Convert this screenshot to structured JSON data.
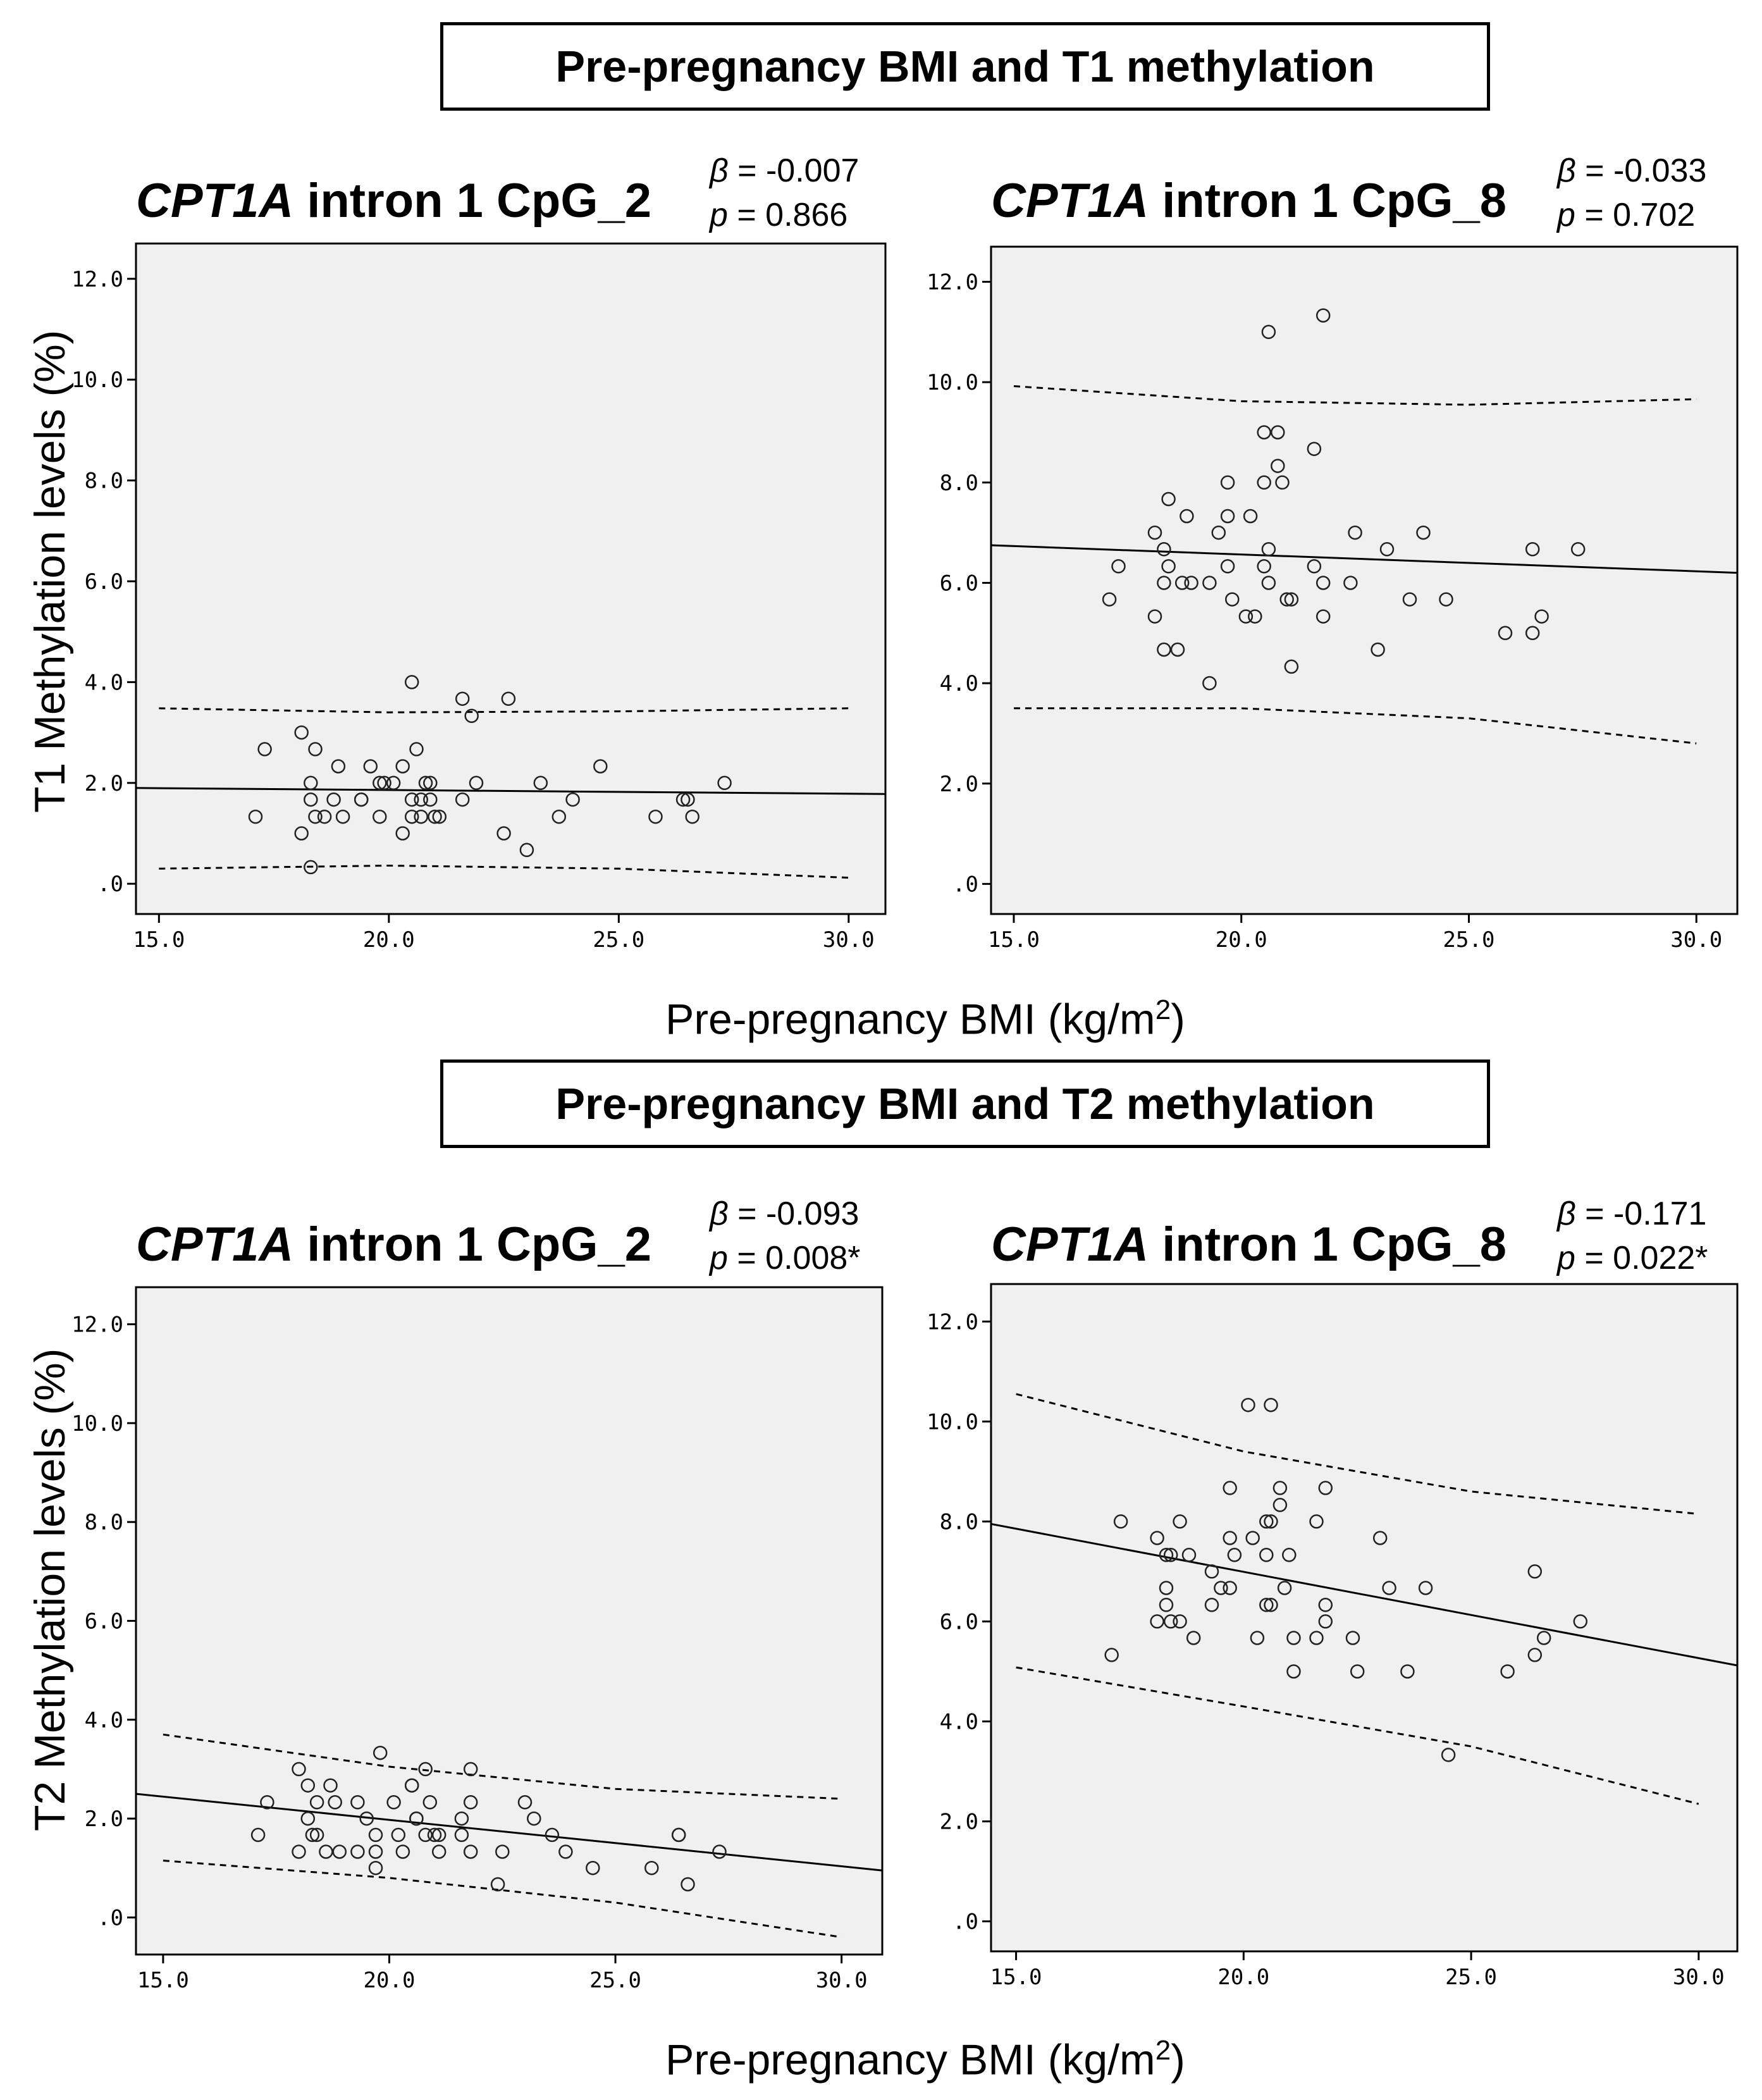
{
  "sections": [
    {
      "title": "Pre-pregnancy BMI and T1 methylation"
    },
    {
      "title": "Pre-pregnancy BMI and T2 methylation"
    }
  ],
  "y_labels": [
    "T1 Methylation levels (%)",
    "T2 Methylation levels (%)"
  ],
  "x_label": {
    "text": "Pre-pregnancy BMI (kg/m",
    "sup": "2",
    "close": ")"
  },
  "panels": [
    {
      "gene": "CPT1A",
      "title_rest": " intron 1 CpG_2",
      "beta_label": "β",
      "beta_value": " = -0.007",
      "p_label": "p",
      "p_value": " = 0.866"
    },
    {
      "gene": "CPT1A",
      "title_rest": " intron 1 CpG_8",
      "beta_label": "β",
      "beta_value": " = -0.033",
      "p_label": "p",
      "p_value": " = 0.702"
    },
    {
      "gene": "CPT1A",
      "title_rest": " intron 1 CpG_2",
      "beta_label": "β",
      "beta_value": " = -0.093",
      "p_label": "p",
      "p_value": " = 0.008*"
    },
    {
      "gene": "CPT1A",
      "title_rest": " intron 1 CpG_8",
      "beta_label": "β",
      "beta_value": " = -0.171",
      "p_label": "p",
      "p_value": " = 0.022*"
    }
  ],
  "chart_data": [
    {
      "type": "scatter",
      "title": "CPT1A intron 1 CpG_2",
      "xlabel": "Pre-pregnancy BMI (kg/m2)",
      "ylabel": "T1 Methylation levels (%)",
      "xlim": [
        14.5,
        30.8
      ],
      "ylim": [
        -0.6,
        12.7
      ],
      "x_ticks": [
        "15.0",
        "20.0",
        "25.0",
        "30.0"
      ],
      "y_ticks": [
        ".0",
        "2.0",
        "4.0",
        "6.0",
        "8.0",
        "10.0",
        "12.0"
      ],
      "points": [
        [
          17.1,
          1.33
        ],
        [
          17.3,
          2.67
        ],
        [
          18.1,
          3.0
        ],
        [
          18.1,
          1.0
        ],
        [
          18.3,
          2.0
        ],
        [
          18.3,
          0.33
        ],
        [
          18.3,
          1.67
        ],
        [
          18.4,
          1.33
        ],
        [
          18.4,
          2.67
        ],
        [
          18.6,
          1.33
        ],
        [
          18.8,
          1.67
        ],
        [
          18.9,
          2.33
        ],
        [
          19.0,
          1.33
        ],
        [
          19.4,
          1.67
        ],
        [
          19.4,
          1.67
        ],
        [
          19.6,
          2.33
        ],
        [
          19.8,
          1.33
        ],
        [
          19.8,
          2.0
        ],
        [
          19.9,
          2.0
        ],
        [
          20.1,
          2.0
        ],
        [
          20.3,
          2.33
        ],
        [
          20.3,
          1.0
        ],
        [
          20.5,
          4.0
        ],
        [
          20.5,
          1.67
        ],
        [
          20.5,
          1.33
        ],
        [
          20.6,
          2.67
        ],
        [
          20.7,
          1.33
        ],
        [
          20.7,
          1.67
        ],
        [
          20.8,
          2.0
        ],
        [
          20.9,
          1.67
        ],
        [
          20.9,
          2.0
        ],
        [
          21.0,
          1.33
        ],
        [
          21.1,
          1.33
        ],
        [
          21.6,
          1.67
        ],
        [
          21.6,
          3.67
        ],
        [
          21.8,
          3.33
        ],
        [
          21.9,
          2.0
        ],
        [
          22.5,
          1.0
        ],
        [
          22.6,
          3.67
        ],
        [
          23.0,
          0.67
        ],
        [
          23.3,
          2.0
        ],
        [
          23.7,
          1.33
        ],
        [
          24.0,
          1.67
        ],
        [
          24.6,
          2.33
        ],
        [
          25.8,
          1.33
        ],
        [
          26.4,
          1.67
        ],
        [
          26.5,
          1.67
        ],
        [
          26.6,
          1.33
        ],
        [
          27.3,
          2.0
        ]
      ],
      "fit": {
        "x": [
          14.5,
          30.8
        ],
        "y": [
          1.9,
          1.78
        ]
      },
      "ci_upper": {
        "x": [
          15.0,
          20.0,
          25.0,
          30.0
        ],
        "y": [
          3.48,
          3.4,
          3.42,
          3.48
        ]
      },
      "ci_lower": {
        "x": [
          15.0,
          20.0,
          25.0,
          30.0
        ],
        "y": [
          0.3,
          0.36,
          0.3,
          0.12
        ]
      },
      "stats": {
        "beta": -0.007,
        "p": 0.866
      }
    },
    {
      "type": "scatter",
      "title": "CPT1A intron 1 CpG_8",
      "xlabel": "Pre-pregnancy BMI (kg/m2)",
      "ylabel": "T1 Methylation levels (%)",
      "xlim": [
        14.5,
        30.9
      ],
      "ylim": [
        -0.6,
        12.7
      ],
      "x_ticks": [
        "15.0",
        "20.0",
        "25.0",
        "30.0"
      ],
      "y_ticks": [
        ".0",
        "2.0",
        "4.0",
        "6.0",
        "8.0",
        "10.0",
        "12.0"
      ],
      "points": [
        [
          17.1,
          5.67
        ],
        [
          17.3,
          6.33
        ],
        [
          18.1,
          7.0
        ],
        [
          18.1,
          5.33
        ],
        [
          18.3,
          6.0
        ],
        [
          18.3,
          4.67
        ],
        [
          18.3,
          6.67
        ],
        [
          18.4,
          7.67
        ],
        [
          18.4,
          6.33
        ],
        [
          18.6,
          4.67
        ],
        [
          18.7,
          6.0
        ],
        [
          18.8,
          7.33
        ],
        [
          18.9,
          6.0
        ],
        [
          19.3,
          6.0
        ],
        [
          19.3,
          4.0
        ],
        [
          19.5,
          7.0
        ],
        [
          19.7,
          8.0
        ],
        [
          19.7,
          7.33
        ],
        [
          19.7,
          6.33
        ],
        [
          19.8,
          5.67
        ],
        [
          20.1,
          5.33
        ],
        [
          20.2,
          7.33
        ],
        [
          20.3,
          5.33
        ],
        [
          20.5,
          9.0
        ],
        [
          20.5,
          8.0
        ],
        [
          20.5,
          6.33
        ],
        [
          20.6,
          6.67
        ],
        [
          20.6,
          6.0
        ],
        [
          20.6,
          11.0
        ],
        [
          20.8,
          9.0
        ],
        [
          20.8,
          8.33
        ],
        [
          20.9,
          8.0
        ],
        [
          21.0,
          5.67
        ],
        [
          21.1,
          5.67
        ],
        [
          21.1,
          4.33
        ],
        [
          21.6,
          8.67
        ],
        [
          21.6,
          6.33
        ],
        [
          21.8,
          11.33
        ],
        [
          21.8,
          6.0
        ],
        [
          21.8,
          5.33
        ],
        [
          22.4,
          6.0
        ],
        [
          22.5,
          7.0
        ],
        [
          23.0,
          4.67
        ],
        [
          23.2,
          6.67
        ],
        [
          23.7,
          5.67
        ],
        [
          24.0,
          7.0
        ],
        [
          24.5,
          5.67
        ],
        [
          25.8,
          5.0
        ],
        [
          26.4,
          6.67
        ],
        [
          26.4,
          5.0
        ],
        [
          26.6,
          5.33
        ],
        [
          27.4,
          6.67
        ]
      ],
      "fit": {
        "x": [
          14.5,
          30.9
        ],
        "y": [
          6.75,
          6.2
        ]
      },
      "ci_upper": {
        "x": [
          15.0,
          20.0,
          25.0,
          30.0
        ],
        "y": [
          9.92,
          9.62,
          9.55,
          9.66
        ]
      },
      "ci_lower": {
        "x": [
          15.0,
          20.0,
          25.0,
          30.0
        ],
        "y": [
          3.5,
          3.5,
          3.3,
          2.8
        ]
      },
      "stats": {
        "beta": -0.033,
        "p": 0.702
      }
    },
    {
      "type": "scatter",
      "title": "CPT1A intron 1 CpG_2",
      "xlabel": "Pre-pregnancy BMI (kg/m2)",
      "ylabel": "T2 Methylation levels (%)",
      "xlim": [
        14.4,
        30.9
      ],
      "ylim": [
        -0.75,
        12.75
      ],
      "x_ticks": [
        "15.0",
        "20.0",
        "25.0",
        "30.0"
      ],
      "y_ticks": [
        ".0",
        "2.0",
        "4.0",
        "6.0",
        "8.0",
        "10.0",
        "12.0"
      ],
      "points": [
        [
          17.1,
          1.67
        ],
        [
          17.3,
          2.33
        ],
        [
          18.0,
          3.0
        ],
        [
          18.0,
          1.33
        ],
        [
          18.2,
          2.67
        ],
        [
          18.2,
          2.0
        ],
        [
          18.3,
          1.67
        ],
        [
          18.4,
          1.67
        ],
        [
          18.4,
          2.33
        ],
        [
          18.6,
          1.33
        ],
        [
          18.7,
          2.67
        ],
        [
          18.8,
          2.33
        ],
        [
          18.9,
          1.33
        ],
        [
          19.3,
          2.33
        ],
        [
          19.3,
          1.33
        ],
        [
          19.5,
          2.0
        ],
        [
          19.7,
          1.67
        ],
        [
          19.7,
          1.0
        ],
        [
          19.7,
          1.33
        ],
        [
          19.8,
          3.33
        ],
        [
          20.1,
          2.33
        ],
        [
          20.2,
          1.67
        ],
        [
          20.3,
          1.33
        ],
        [
          20.5,
          2.67
        ],
        [
          20.5,
          2.67
        ],
        [
          20.6,
          2.0
        ],
        [
          20.6,
          2.0
        ],
        [
          20.8,
          3.0
        ],
        [
          20.8,
          1.67
        ],
        [
          20.9,
          2.33
        ],
        [
          21.0,
          1.67
        ],
        [
          21.1,
          1.67
        ],
        [
          21.1,
          1.33
        ],
        [
          21.6,
          2.0
        ],
        [
          21.6,
          1.67
        ],
        [
          21.8,
          3.0
        ],
        [
          21.8,
          2.33
        ],
        [
          21.8,
          1.33
        ],
        [
          22.4,
          0.67
        ],
        [
          22.5,
          1.33
        ],
        [
          23.0,
          2.33
        ],
        [
          23.2,
          2.0
        ],
        [
          23.6,
          1.67
        ],
        [
          23.9,
          1.33
        ],
        [
          24.5,
          1.0
        ],
        [
          25.8,
          1.0
        ],
        [
          26.4,
          1.67
        ],
        [
          26.4,
          1.67
        ],
        [
          26.6,
          0.67
        ],
        [
          27.3,
          1.33
        ]
      ],
      "fit": {
        "x": [
          14.4,
          30.9
        ],
        "y": [
          2.5,
          0.95
        ]
      },
      "ci_upper": {
        "x": [
          15.0,
          20.0,
          25.0,
          30.0
        ],
        "y": [
          3.7,
          3.05,
          2.6,
          2.4
        ]
      },
      "ci_lower": {
        "x": [
          15.0,
          20.0,
          25.0,
          30.0
        ],
        "y": [
          1.15,
          0.8,
          0.3,
          -0.4
        ]
      },
      "stats": {
        "beta": -0.093,
        "p": 0.008
      }
    },
    {
      "type": "scatter",
      "title": "CPT1A intron 1 CpG_8",
      "xlabel": "Pre-pregnancy BMI (kg/m2)",
      "ylabel": "T2 Methylation levels (%)",
      "xlim": [
        14.45,
        30.85
      ],
      "ylim": [
        -0.6,
        12.75
      ],
      "x_ticks": [
        "15.0",
        "20.0",
        "25.0",
        "30.0"
      ],
      "y_ticks": [
        ".0",
        "2.0",
        "4.0",
        "6.0",
        "8.0",
        "10.0",
        "12.0"
      ],
      "points": [
        [
          17.1,
          5.33
        ],
        [
          17.3,
          8.0
        ],
        [
          18.1,
          7.67
        ],
        [
          18.1,
          6.0
        ],
        [
          18.3,
          7.33
        ],
        [
          18.3,
          6.67
        ],
        [
          18.3,
          6.33
        ],
        [
          18.4,
          6.0
        ],
        [
          18.4,
          7.33
        ],
        [
          18.6,
          8.0
        ],
        [
          18.6,
          6.0
        ],
        [
          18.8,
          7.33
        ],
        [
          18.9,
          5.67
        ],
        [
          19.3,
          7.0
        ],
        [
          19.3,
          6.33
        ],
        [
          19.5,
          6.67
        ],
        [
          19.7,
          8.67
        ],
        [
          19.7,
          7.67
        ],
        [
          19.7,
          6.67
        ],
        [
          19.8,
          7.33
        ],
        [
          20.1,
          10.33
        ],
        [
          20.2,
          7.67
        ],
        [
          20.3,
          5.67
        ],
        [
          20.5,
          8.0
        ],
        [
          20.5,
          7.33
        ],
        [
          20.5,
          6.33
        ],
        [
          20.6,
          10.33
        ],
        [
          20.6,
          8.0
        ],
        [
          20.6,
          6.33
        ],
        [
          20.8,
          8.67
        ],
        [
          20.8,
          8.33
        ],
        [
          20.9,
          6.67
        ],
        [
          21.0,
          7.33
        ],
        [
          21.1,
          5.67
        ],
        [
          21.1,
          5.0
        ],
        [
          21.6,
          8.0
        ],
        [
          21.6,
          5.67
        ],
        [
          21.8,
          8.67
        ],
        [
          21.8,
          6.33
        ],
        [
          21.8,
          6.0
        ],
        [
          22.4,
          5.67
        ],
        [
          22.5,
          5.0
        ],
        [
          23.0,
          7.67
        ],
        [
          23.2,
          6.67
        ],
        [
          23.6,
          5.0
        ],
        [
          24.0,
          6.67
        ],
        [
          24.5,
          3.33
        ],
        [
          25.8,
          5.0
        ],
        [
          26.4,
          7.0
        ],
        [
          26.4,
          5.33
        ],
        [
          26.6,
          5.67
        ],
        [
          27.4,
          6.0
        ]
      ],
      "fit": {
        "x": [
          14.45,
          30.85
        ],
        "y": [
          7.95,
          5.12
        ]
      },
      "ci_upper": {
        "x": [
          15.0,
          20.0,
          25.0,
          30.0
        ],
        "y": [
          10.55,
          9.4,
          8.6,
          8.15
        ]
      },
      "ci_lower": {
        "x": [
          15.0,
          20.0,
          25.0,
          30.0
        ],
        "y": [
          5.08,
          4.3,
          3.5,
          2.35
        ]
      },
      "stats": {
        "beta": -0.171,
        "p": 0.022
      }
    }
  ]
}
